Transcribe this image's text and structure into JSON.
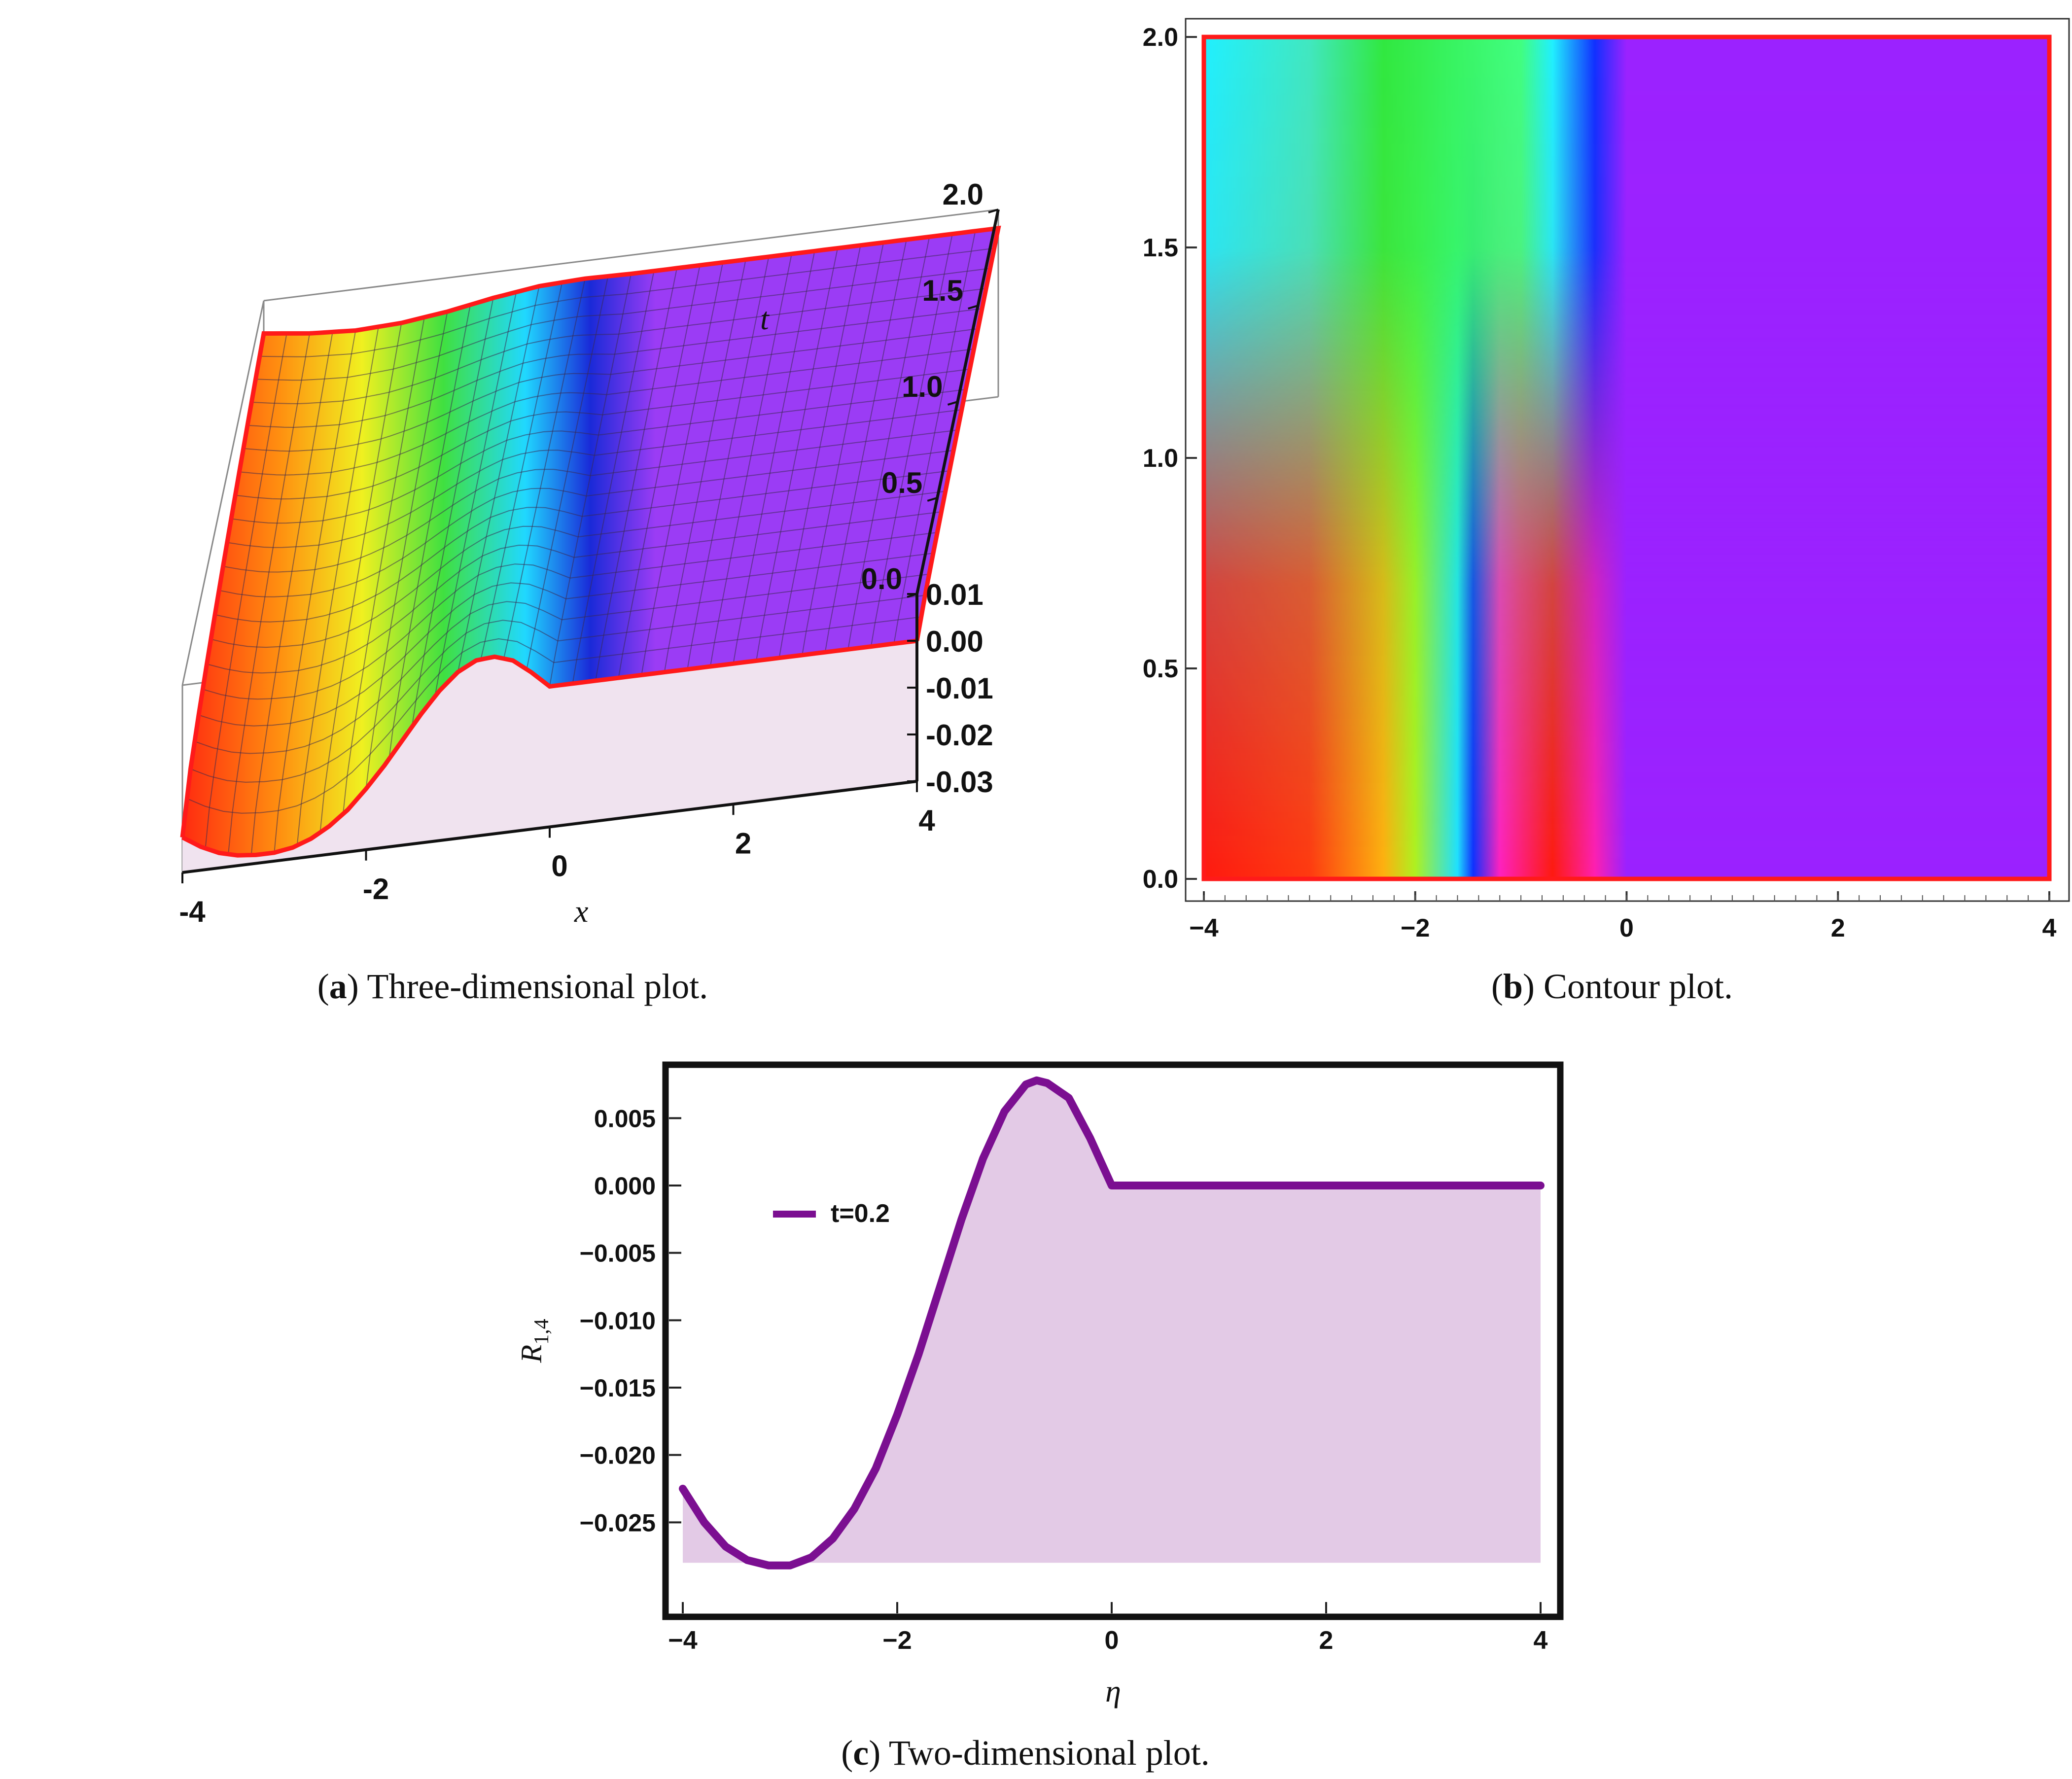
{
  "captions": {
    "a": {
      "letter": "a",
      "text": ") Three-dimensional plot."
    },
    "b": {
      "letter": "b",
      "text": ") Contour plot."
    },
    "c": {
      "letter": "c",
      "text": ") Two-dimensional plot."
    }
  },
  "colors": {
    "surface_flat": "#9b3cf5",
    "boundary": "#ff1a1a",
    "curve": "#7b0f91",
    "fill": "#e3cae6"
  },
  "chart_data": [
    {
      "id": "a",
      "type": "surface",
      "xlabel": "x",
      "ylabel": "t",
      "x_ticks": [
        "-4",
        "-2",
        "0",
        "2",
        "4"
      ],
      "t_ticks": [
        "0.0",
        "0.5",
        "1.0",
        "1.5",
        "2.0"
      ],
      "z_ticks": [
        "0.01",
        "0.00",
        "-0.01",
        "-0.02",
        "-0.03"
      ],
      "xlim": [
        -4,
        4
      ],
      "tlim": [
        0,
        2
      ],
      "zlim": [
        -0.03,
        0.01
      ],
      "profile_t0": {
        "x": [
          -4.0,
          -3.8,
          -3.6,
          -3.4,
          -3.2,
          -3.0,
          -2.8,
          -2.6,
          -2.4,
          -2.2,
          -2.0,
          -1.8,
          -1.6,
          -1.4,
          -1.2,
          -1.0,
          -0.8,
          -0.6,
          -0.4,
          -0.2,
          0.0,
          1.0,
          2.0,
          3.0,
          4.0
        ],
        "z": [
          -0.0225,
          -0.025,
          -0.0268,
          -0.0278,
          -0.0282,
          -0.0282,
          -0.0276,
          -0.0262,
          -0.024,
          -0.021,
          -0.017,
          -0.0125,
          -0.0075,
          -0.0025,
          0.002,
          0.0055,
          0.0075,
          0.0078,
          0.0065,
          0.0035,
          0.0,
          0.0,
          0.0,
          0.0,
          0.0
        ]
      },
      "profile_t2": {
        "x": [
          -4.0,
          -3.5,
          -3.0,
          -2.5,
          -2.0,
          -1.5,
          -1.0,
          -0.5,
          0.0,
          1.0,
          2.0,
          3.0,
          4.0
        ],
        "z": [
          0.003,
          0.0018,
          0.0012,
          0.0016,
          0.0028,
          0.0045,
          0.0058,
          0.0062,
          0.006,
          0.006,
          0.006,
          0.006,
          0.006
        ]
      }
    },
    {
      "id": "b",
      "type": "heatmap",
      "xlim": [
        -4,
        4
      ],
      "ylim": [
        0,
        2
      ],
      "x_ticks": [
        "−4",
        "−2",
        "0",
        "2",
        "4"
      ],
      "y_ticks": [
        "0.0",
        "0.5",
        "1.0",
        "1.5",
        "2.0"
      ],
      "color_bands_bottom": [
        {
          "x": -4.0,
          "color": "#ff1a10"
        },
        {
          "x": -3.0,
          "color": "#ff3a10"
        },
        {
          "x": -2.3,
          "color": "#ffb010"
        },
        {
          "x": -2.0,
          "color": "#b0f020"
        },
        {
          "x": -1.6,
          "color": "#20e0ff"
        },
        {
          "x": -1.45,
          "color": "#1030ff"
        },
        {
          "x": -1.2,
          "color": "#ff20c0"
        },
        {
          "x": -0.7,
          "color": "#ff1a10"
        },
        {
          "x": -0.3,
          "color": "#ff20b0"
        },
        {
          "x": 0.0,
          "color": "#9b22ff"
        },
        {
          "x": 4.0,
          "color": "#9b22ff"
        }
      ],
      "color_bands_top": [
        {
          "x": -4.0,
          "color": "#20f0ff"
        },
        {
          "x": -3.0,
          "color": "#40e8c0"
        },
        {
          "x": -2.3,
          "color": "#30e840"
        },
        {
          "x": -1.0,
          "color": "#40ff80"
        },
        {
          "x": -0.7,
          "color": "#20f0ff"
        },
        {
          "x": -0.3,
          "color": "#1030ff"
        },
        {
          "x": 0.0,
          "color": "#9b22ff"
        },
        {
          "x": 4.0,
          "color": "#9b22ff"
        }
      ]
    },
    {
      "id": "c",
      "type": "area",
      "xlabel": "η",
      "ylabel_main": "R",
      "ylabel_sub": "1,4",
      "xlim": [
        -4,
        4
      ],
      "ylim": [
        -0.03,
        0.0075
      ],
      "x_ticks": [
        "−4",
        "−2",
        "0",
        "2",
        "4"
      ],
      "y_ticks": [
        "0.005",
        "0.000",
        "−0.005",
        "−0.010",
        "−0.015",
        "−0.020",
        "−0.025"
      ],
      "series": [
        {
          "name": "t=0.2",
          "x": [
            -4.0,
            -3.8,
            -3.6,
            -3.4,
            -3.2,
            -3.0,
            -2.8,
            -2.6,
            -2.4,
            -2.2,
            -2.0,
            -1.8,
            -1.6,
            -1.4,
            -1.2,
            -1.0,
            -0.8,
            -0.7,
            -0.6,
            -0.4,
            -0.2,
            0.0,
            0.5,
            1.0,
            1.5,
            2.0,
            2.5,
            3.0,
            3.5,
            4.0
          ],
          "y": [
            -0.0225,
            -0.025,
            -0.0268,
            -0.0278,
            -0.0282,
            -0.0282,
            -0.0276,
            -0.0262,
            -0.024,
            -0.021,
            -0.017,
            -0.0125,
            -0.0075,
            -0.0025,
            0.002,
            0.0055,
            0.0075,
            0.0078,
            0.0076,
            0.0065,
            0.0035,
            0.0,
            0.0,
            0.0,
            0.0,
            0.0,
            0.0,
            0.0,
            0.0,
            0.0
          ]
        }
      ],
      "fill_baseline": -0.028,
      "legend": "left"
    }
  ]
}
